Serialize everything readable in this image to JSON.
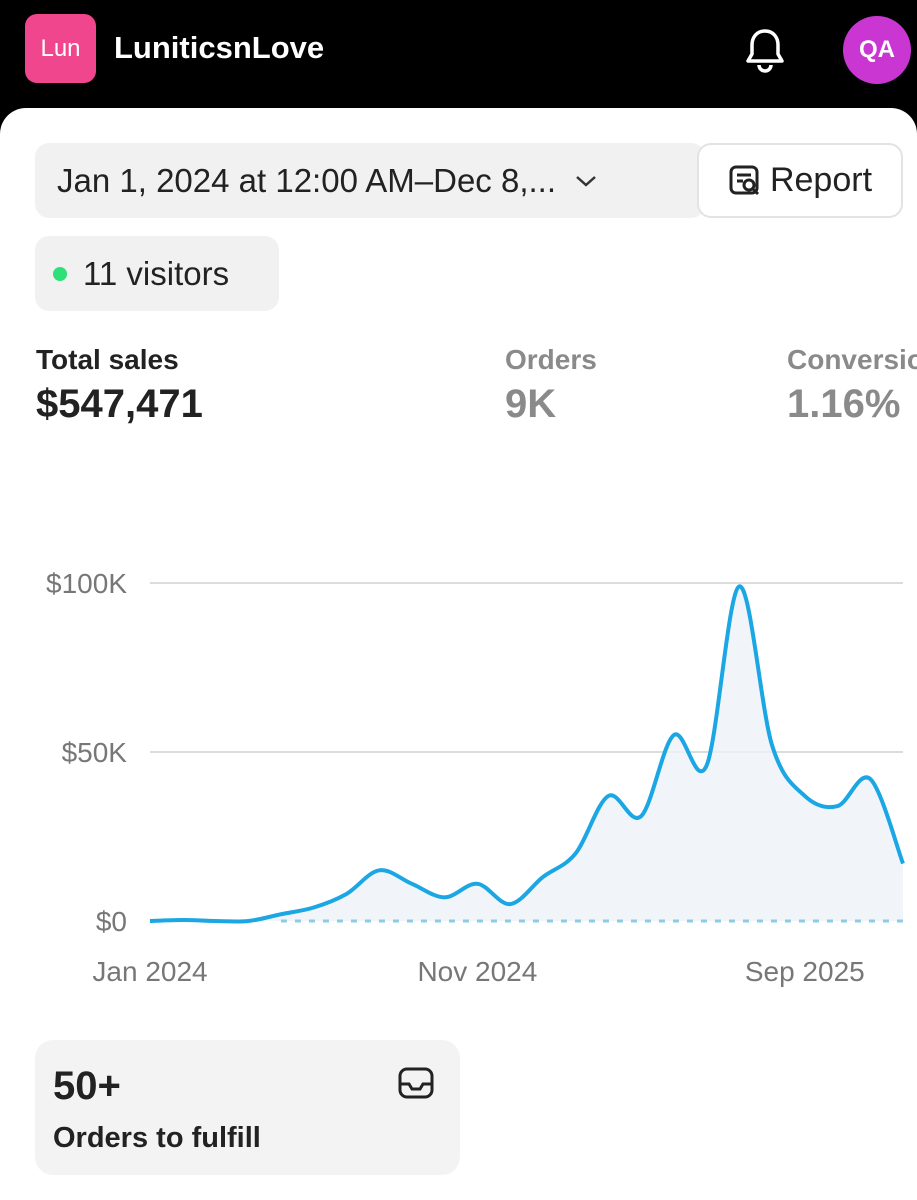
{
  "header": {
    "logo": "Lun",
    "store_name": "LuniticsnLove",
    "avatar": "QA"
  },
  "date_range": "Jan 1, 2024 at 12:00 AM–Dec 8,...",
  "report_button": "Report",
  "visitors": "11 visitors",
  "metrics": [
    {
      "label": "Total sales",
      "value": "$547,471"
    },
    {
      "label": "Orders",
      "value": "9K"
    },
    {
      "label": "Conversion rate",
      "value": "1.16%"
    }
  ],
  "chart_data": {
    "type": "line",
    "categories": [
      "Jan 2024",
      null,
      null,
      null,
      null,
      null,
      null,
      null,
      null,
      null,
      "Nov 2024",
      null,
      null,
      null,
      null,
      null,
      null,
      null,
      null,
      null,
      "Sep 2025",
      null,
      null,
      null
    ],
    "series": [
      {
        "color": "#1ba6e4",
        "values": [
          0,
          300,
          0,
          0,
          2000,
          4000,
          8000,
          15000,
          11000,
          7000,
          11000,
          5000,
          13000,
          20000,
          37000,
          31000,
          55000,
          46000,
          99000,
          52000,
          37000,
          34000,
          42000,
          17000
        ]
      },
      {
        "color": "#8ccde6",
        "dashed": true,
        "values": [
          null,
          null,
          null,
          null,
          0,
          0,
          0,
          0,
          0,
          0,
          0,
          0,
          0,
          0,
          0,
          0,
          0,
          0,
          0,
          0,
          0,
          0,
          0,
          0
        ]
      }
    ],
    "ylim": [
      0,
      100000
    ],
    "yticks": [
      {
        "value": 0,
        "label": "$0"
      },
      {
        "value": 50000,
        "label": "$50K"
      },
      {
        "value": 100000,
        "label": "$100K"
      }
    ],
    "grid": true
  },
  "fulfill_card": {
    "value": "50+",
    "label": "Orders to fulfill"
  }
}
